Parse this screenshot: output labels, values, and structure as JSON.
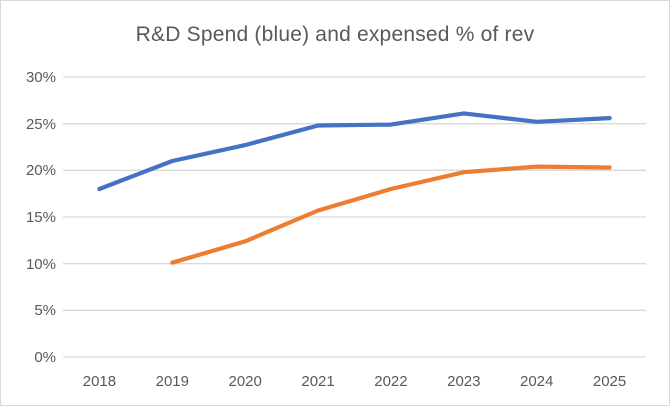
{
  "title": "R&D Spend (blue) and expensed % of rev",
  "colors": {
    "blue_series": "#4472C4",
    "orange_series": "#ED7D31",
    "gridline": "#D9D9D9",
    "axis_text": "#595959",
    "title_text": "#595959",
    "border": "#D9D9D9",
    "background": "#FFFFFF"
  },
  "chart_data": {
    "type": "line",
    "title": "R&D Spend (blue) and expensed % of rev",
    "categories": [
      "2018",
      "2019",
      "2020",
      "2021",
      "2022",
      "2023",
      "2024",
      "2025"
    ],
    "series": [
      {
        "name": "rd-spend-pct-of-rev",
        "color": "#4472C4",
        "values": [
          18.0,
          21.0,
          22.7,
          24.8,
          24.9,
          26.1,
          25.2,
          25.6
        ]
      },
      {
        "name": "expensed-pct-of-rev",
        "color": "#ED7D31",
        "values": [
          null,
          10.1,
          12.4,
          15.7,
          18.0,
          19.8,
          20.4,
          20.3
        ]
      }
    ],
    "xlabel": "",
    "ylabel": "",
    "y_ticks": [
      "0%",
      "5%",
      "10%",
      "15%",
      "20%",
      "25%",
      "30%"
    ],
    "ylim": [
      0,
      30
    ],
    "y_tick_step": 5,
    "grid": true,
    "legend_position": "none"
  }
}
